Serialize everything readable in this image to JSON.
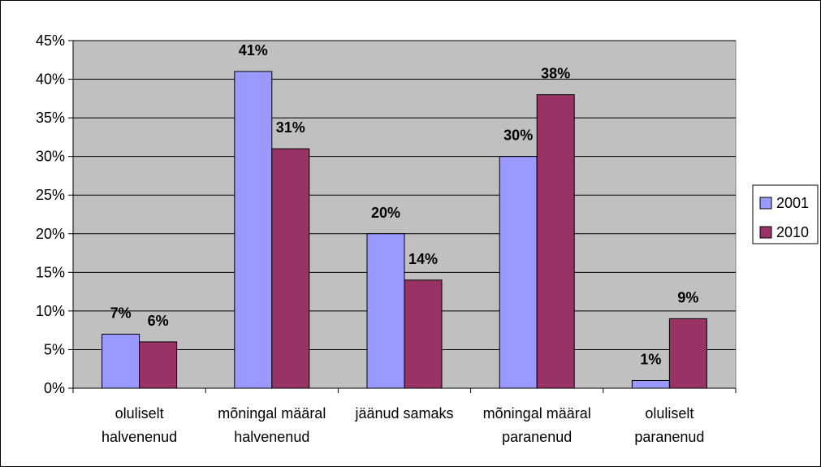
{
  "chart_data": {
    "type": "bar",
    "categories": [
      [
        "oluliselt",
        "halvenenud"
      ],
      [
        "mõningal määral",
        "halvenenud"
      ],
      [
        "jäänud samaks"
      ],
      [
        "mõningal määral",
        "paranenud"
      ],
      [
        "oluliselt",
        "paranenud"
      ]
    ],
    "series": [
      {
        "name": "2001",
        "values": [
          7,
          41,
          20,
          30,
          1
        ],
        "color": "#9999FF"
      },
      {
        "name": "2010",
        "values": [
          6,
          31,
          14,
          38,
          9
        ],
        "color": "#993366"
      }
    ],
    "data_labels": [
      [
        "7%",
        "41%",
        "20%",
        "30%",
        "1%"
      ],
      [
        "6%",
        "31%",
        "14%",
        "38%",
        "9%"
      ]
    ],
    "y_ticks": [
      "0%",
      "5%",
      "10%",
      "15%",
      "20%",
      "25%",
      "30%",
      "35%",
      "40%",
      "45%"
    ],
    "ylim": [
      0,
      45
    ],
    "ystep": 5,
    "plot_background": "#C0C0C0",
    "grid": true,
    "legend": "right"
  }
}
